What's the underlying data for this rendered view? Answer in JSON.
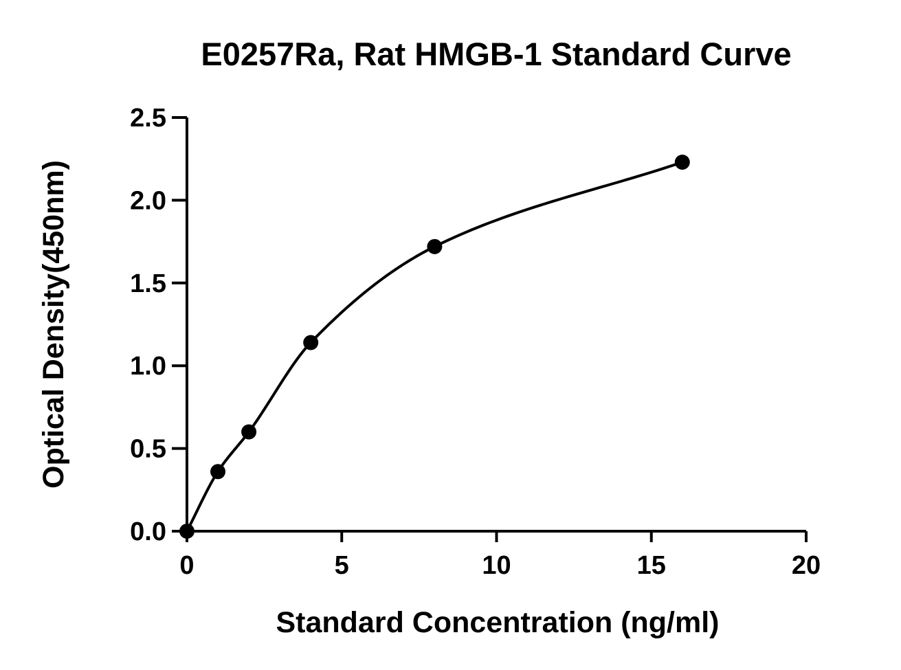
{
  "chart_data": {
    "type": "scatter",
    "title": "E0257Ra, Rat HMGB-1 Standard Curve",
    "xlabel": "Standard Concentration (ng/ml)",
    "ylabel": "Optical Density(450nm)",
    "xlim": [
      0,
      20
    ],
    "ylim": [
      0,
      2.5
    ],
    "xticks": [
      0,
      5,
      10,
      15,
      20
    ],
    "xtick_labels": [
      "0",
      "5",
      "10",
      "15",
      "20"
    ],
    "yticks": [
      0,
      0.5,
      1.0,
      1.5,
      2.0,
      2.5
    ],
    "ytick_labels": [
      "0.0",
      "0.5",
      "1.0",
      "1.5",
      "2.0",
      "2.5"
    ],
    "grid": false,
    "legend": "none",
    "marker_color": "#000000",
    "line_color": "#000000",
    "series": [
      {
        "x": [
          0,
          1,
          2,
          4,
          8,
          16
        ],
        "y": [
          0.0,
          0.36,
          0.6,
          1.14,
          1.72,
          2.23
        ],
        "fit": "smooth curve"
      }
    ]
  }
}
